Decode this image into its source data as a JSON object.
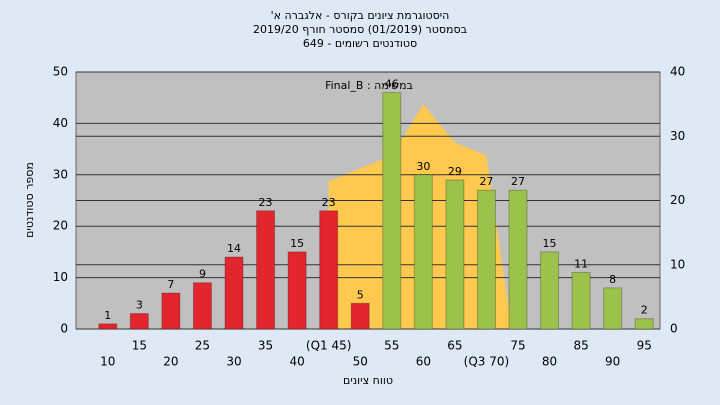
{
  "chart_data": {
    "type": "bar",
    "title": [
      "היסטוגרמת ציונים בקורס - אלגברה א'",
      "בסמסטר  (01/2019)  סמסטר חורף 2019/20",
      "סטודנטים רשומים - 649"
    ],
    "annotation": "במשימה : Final_B",
    "y_label": "מספר סטודנטים",
    "x_label": "טווח ציונים",
    "categories": [
      "10",
      "15",
      "20",
      "25",
      "30",
      "35",
      "40",
      "(Q1 45)",
      "50",
      "55",
      "60",
      "65",
      "(Q3 70)",
      "75",
      "80",
      "85",
      "90",
      "95"
    ],
    "values": [
      1,
      3,
      7,
      9,
      14,
      23,
      15,
      23,
      5,
      46,
      30,
      29,
      27,
      27,
      15,
      11,
      8,
      2
    ],
    "colors": [
      "#e3262e",
      "#e3262e",
      "#e3262e",
      "#e3262e",
      "#e3262e",
      "#e3262e",
      "#e3262e",
      "#e3262e",
      "#e3262e",
      "#9dc24c",
      "#9dc24c",
      "#9dc24c",
      "#9dc24c",
      "#9dc24c",
      "#9dc24c",
      "#9dc24c",
      "#9dc24c",
      "#9dc24c"
    ],
    "area": {
      "axis": "y2",
      "color": "#ffc94f",
      "values": [
        null,
        null,
        null,
        null,
        null,
        null,
        null,
        23,
        25,
        27,
        35,
        29,
        27,
        null,
        null,
        null,
        null,
        null
      ]
    },
    "ylim": [
      0,
      50
    ],
    "yticks": [
      0,
      10,
      20,
      30,
      40,
      50
    ],
    "y2lim": [
      0,
      40
    ],
    "y2ticks": [
      0,
      10,
      20,
      30,
      40
    ],
    "grid": true
  }
}
